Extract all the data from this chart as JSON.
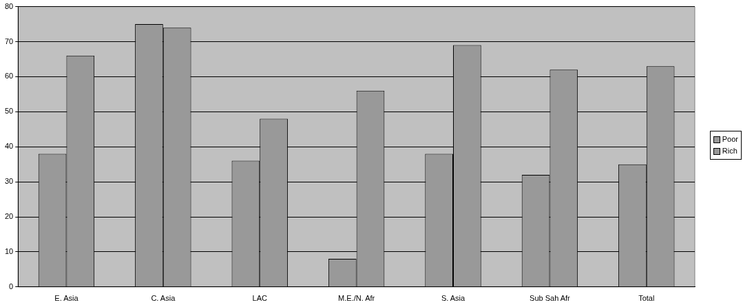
{
  "chart_data": {
    "type": "bar",
    "categories": [
      "E. Asia",
      "C. Asia",
      "LAC",
      "M.E./N. Afr",
      "S. Asia",
      "Sub Sah Afr",
      "Total"
    ],
    "series": [
      {
        "name": "Poor",
        "color": "#999999",
        "values": [
          38,
          75,
          36,
          8,
          38,
          32,
          35
        ]
      },
      {
        "name": "Rich",
        "color": "#999999",
        "values": [
          66,
          74,
          48,
          56,
          69,
          62,
          63
        ]
      }
    ],
    "ylim": [
      0,
      80
    ],
    "yticks": [
      0,
      10,
      20,
      30,
      40,
      50,
      60,
      70,
      80
    ],
    "grid": "y",
    "legend": "right"
  }
}
